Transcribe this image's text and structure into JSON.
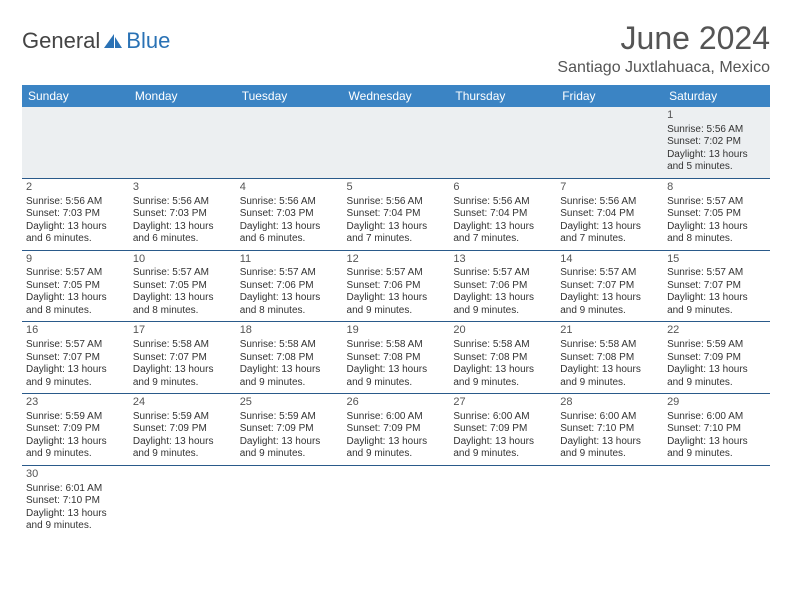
{
  "brand": {
    "part1": "General",
    "part2": "Blue",
    "icon_color": "#2a72b5"
  },
  "title": "June 2024",
  "location": "Santiago Juxtlahuaca, Mexico",
  "colors": {
    "header_bg": "#3b84c4",
    "header_text": "#ffffff",
    "cell_border": "#2a5a8a",
    "firstweek_bg": "#eceff1",
    "title_color": "#555555"
  },
  "day_headers": [
    "Sunday",
    "Monday",
    "Tuesday",
    "Wednesday",
    "Thursday",
    "Friday",
    "Saturday"
  ],
  "weeks": [
    [
      null,
      null,
      null,
      null,
      null,
      null,
      {
        "n": "1",
        "sunrise": "5:56 AM",
        "sunset": "7:02 PM",
        "daylight": "13 hours and 5 minutes."
      }
    ],
    [
      {
        "n": "2",
        "sunrise": "5:56 AM",
        "sunset": "7:03 PM",
        "daylight": "13 hours and 6 minutes."
      },
      {
        "n": "3",
        "sunrise": "5:56 AM",
        "sunset": "7:03 PM",
        "daylight": "13 hours and 6 minutes."
      },
      {
        "n": "4",
        "sunrise": "5:56 AM",
        "sunset": "7:03 PM",
        "daylight": "13 hours and 6 minutes."
      },
      {
        "n": "5",
        "sunrise": "5:56 AM",
        "sunset": "7:04 PM",
        "daylight": "13 hours and 7 minutes."
      },
      {
        "n": "6",
        "sunrise": "5:56 AM",
        "sunset": "7:04 PM",
        "daylight": "13 hours and 7 minutes."
      },
      {
        "n": "7",
        "sunrise": "5:56 AM",
        "sunset": "7:04 PM",
        "daylight": "13 hours and 7 minutes."
      },
      {
        "n": "8",
        "sunrise": "5:57 AM",
        "sunset": "7:05 PM",
        "daylight": "13 hours and 8 minutes."
      }
    ],
    [
      {
        "n": "9",
        "sunrise": "5:57 AM",
        "sunset": "7:05 PM",
        "daylight": "13 hours and 8 minutes."
      },
      {
        "n": "10",
        "sunrise": "5:57 AM",
        "sunset": "7:05 PM",
        "daylight": "13 hours and 8 minutes."
      },
      {
        "n": "11",
        "sunrise": "5:57 AM",
        "sunset": "7:06 PM",
        "daylight": "13 hours and 8 minutes."
      },
      {
        "n": "12",
        "sunrise": "5:57 AM",
        "sunset": "7:06 PM",
        "daylight": "13 hours and 9 minutes."
      },
      {
        "n": "13",
        "sunrise": "5:57 AM",
        "sunset": "7:06 PM",
        "daylight": "13 hours and 9 minutes."
      },
      {
        "n": "14",
        "sunrise": "5:57 AM",
        "sunset": "7:07 PM",
        "daylight": "13 hours and 9 minutes."
      },
      {
        "n": "15",
        "sunrise": "5:57 AM",
        "sunset": "7:07 PM",
        "daylight": "13 hours and 9 minutes."
      }
    ],
    [
      {
        "n": "16",
        "sunrise": "5:57 AM",
        "sunset": "7:07 PM",
        "daylight": "13 hours and 9 minutes."
      },
      {
        "n": "17",
        "sunrise": "5:58 AM",
        "sunset": "7:07 PM",
        "daylight": "13 hours and 9 minutes."
      },
      {
        "n": "18",
        "sunrise": "5:58 AM",
        "sunset": "7:08 PM",
        "daylight": "13 hours and 9 minutes."
      },
      {
        "n": "19",
        "sunrise": "5:58 AM",
        "sunset": "7:08 PM",
        "daylight": "13 hours and 9 minutes."
      },
      {
        "n": "20",
        "sunrise": "5:58 AM",
        "sunset": "7:08 PM",
        "daylight": "13 hours and 9 minutes."
      },
      {
        "n": "21",
        "sunrise": "5:58 AM",
        "sunset": "7:08 PM",
        "daylight": "13 hours and 9 minutes."
      },
      {
        "n": "22",
        "sunrise": "5:59 AM",
        "sunset": "7:09 PM",
        "daylight": "13 hours and 9 minutes."
      }
    ],
    [
      {
        "n": "23",
        "sunrise": "5:59 AM",
        "sunset": "7:09 PM",
        "daylight": "13 hours and 9 minutes."
      },
      {
        "n": "24",
        "sunrise": "5:59 AM",
        "sunset": "7:09 PM",
        "daylight": "13 hours and 9 minutes."
      },
      {
        "n": "25",
        "sunrise": "5:59 AM",
        "sunset": "7:09 PM",
        "daylight": "13 hours and 9 minutes."
      },
      {
        "n": "26",
        "sunrise": "6:00 AM",
        "sunset": "7:09 PM",
        "daylight": "13 hours and 9 minutes."
      },
      {
        "n": "27",
        "sunrise": "6:00 AM",
        "sunset": "7:09 PM",
        "daylight": "13 hours and 9 minutes."
      },
      {
        "n": "28",
        "sunrise": "6:00 AM",
        "sunset": "7:10 PM",
        "daylight": "13 hours and 9 minutes."
      },
      {
        "n": "29",
        "sunrise": "6:00 AM",
        "sunset": "7:10 PM",
        "daylight": "13 hours and 9 minutes."
      }
    ],
    [
      {
        "n": "30",
        "sunrise": "6:01 AM",
        "sunset": "7:10 PM",
        "daylight": "13 hours and 9 minutes."
      },
      null,
      null,
      null,
      null,
      null,
      null
    ]
  ],
  "labels": {
    "sunrise": "Sunrise: ",
    "sunset": "Sunset: ",
    "daylight": "Daylight: "
  }
}
